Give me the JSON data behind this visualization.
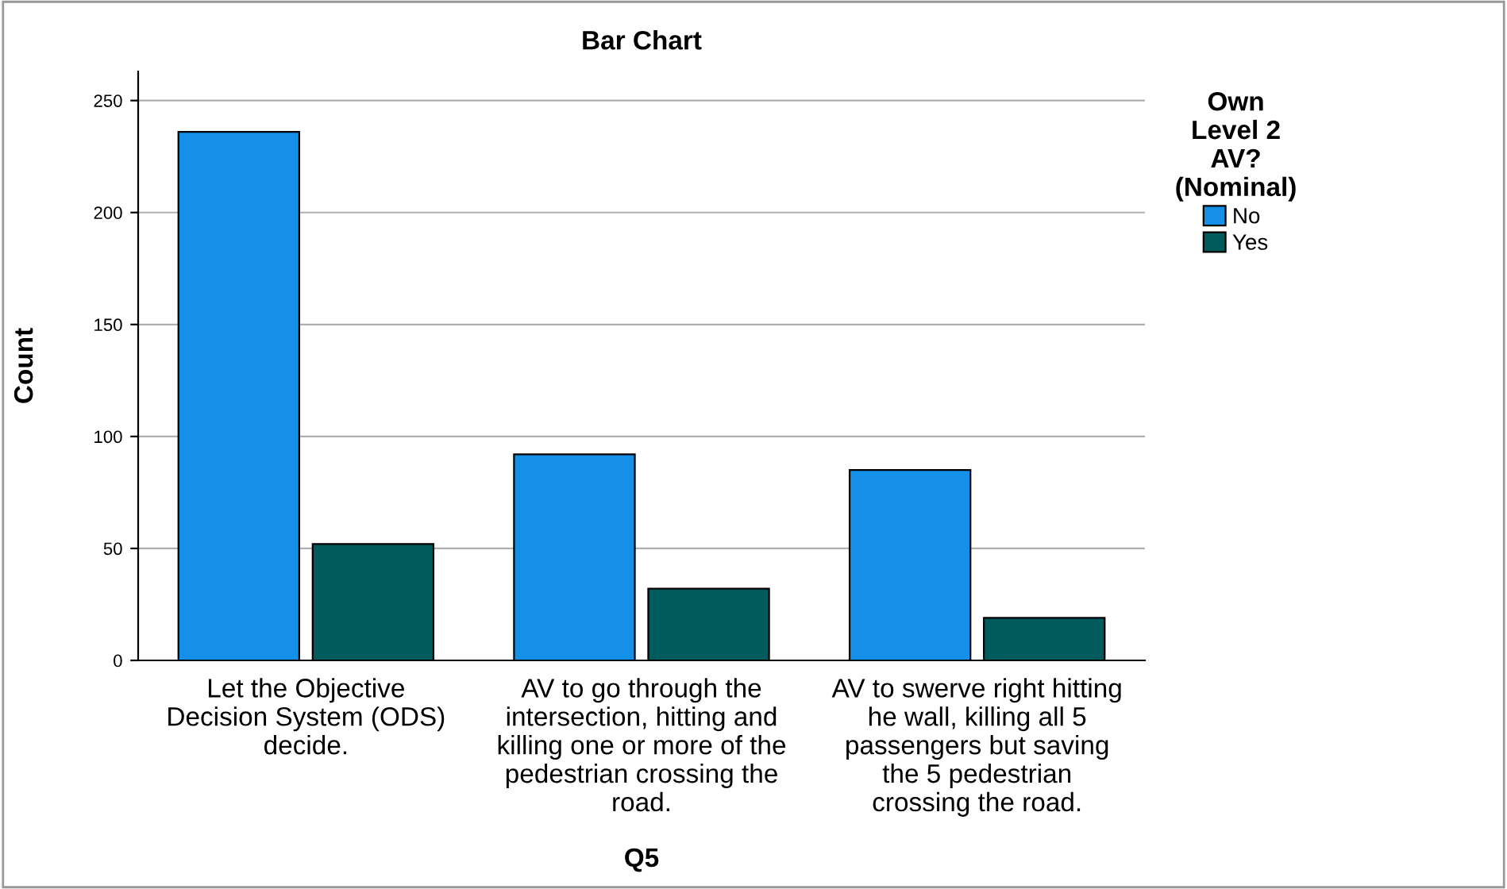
{
  "chart_data": {
    "type": "bar",
    "title": "Bar Chart",
    "xlabel": "Q5",
    "ylabel": "Count",
    "legend_title": "Own\nLevel 2\nAV?\n(Nominal)",
    "categories": [
      "Let the Objective\nDecision System (ODS)\ndecide.",
      "AV to go through the\nintersection, hitting and\nkilling one or more of the\npedestrian crossing the\nroad.",
      "AV to swerve right hitting\nhe wall, killing all 5\npassengers but saving\nthe 5 pedestrian\ncrossing the road."
    ],
    "series": [
      {
        "name": "No",
        "color": "#1490e8",
        "values": [
          236,
          92,
          85
        ]
      },
      {
        "name": "Yes",
        "color": "#005c5c",
        "values": [
          52,
          32,
          19
        ]
      }
    ],
    "ylim": [
      0,
      263
    ],
    "yticks": [
      0,
      50,
      100,
      150,
      200,
      250
    ],
    "grid": "y",
    "legend": "top right"
  }
}
